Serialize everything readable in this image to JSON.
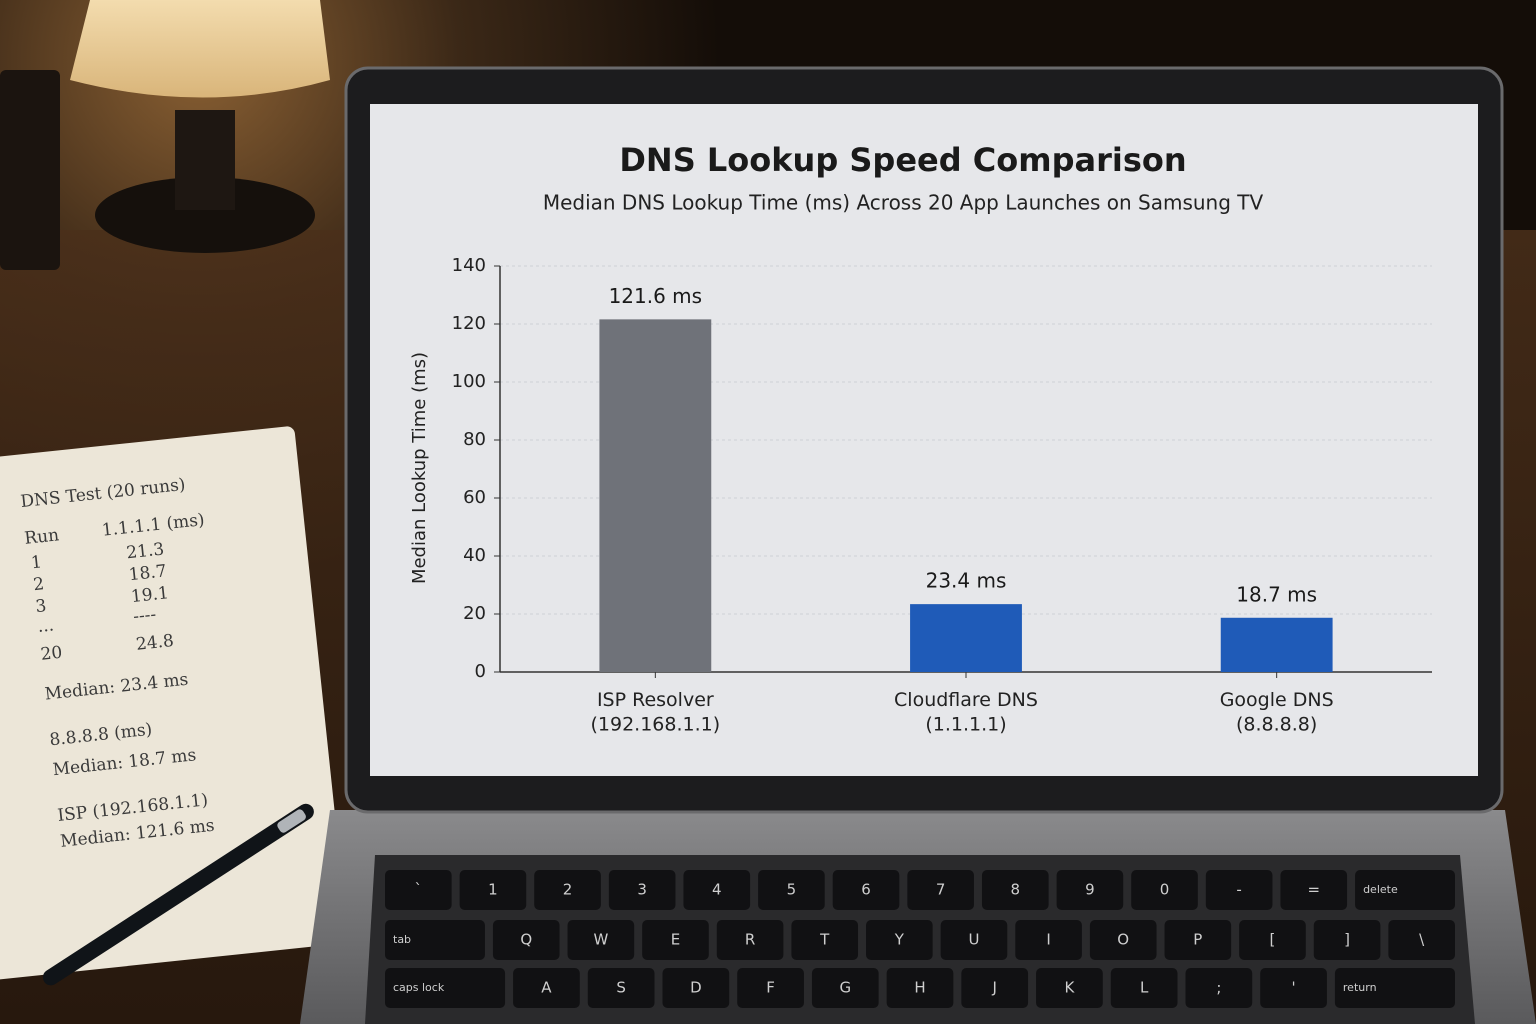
{
  "chart_data": {
    "type": "bar",
    "title": "DNS Lookup Speed Comparison",
    "subtitle": "Median DNS Lookup Time (ms) Across 20 App Launches on Samsung TV",
    "y_label": "Median Lookup Time (ms)",
    "categories": [
      "ISP Resolver\n(192.168.1.1)",
      "Cloudflare DNS\n(1.1.1.1)",
      "Google DNS\n(8.8.8.8)"
    ],
    "values": [
      121.6,
      23.4,
      18.7
    ],
    "value_labels": [
      "121.6 ms",
      "23.4 ms",
      "18.7 ms"
    ],
    "colors": [
      "#6f7279",
      "#1f5bb8",
      "#1f5bb8"
    ],
    "ylim": [
      0,
      140
    ],
    "yticks": [
      0,
      20,
      40,
      60,
      80,
      100,
      120,
      140
    ],
    "grid": true
  },
  "notebook": {
    "title": "DNS Test (20 runs)",
    "headers": [
      "Run",
      "1.1.1.1 (ms)"
    ],
    "rows": [
      [
        "1",
        "21.3"
      ],
      [
        "2",
        "18.7"
      ],
      [
        "3",
        "19.1"
      ],
      [
        "...",
        "----"
      ],
      [
        "20",
        "24.8"
      ]
    ],
    "notes": [
      "Median: 23.4 ms",
      "8.8.8.8 (ms)",
      "Median: 18.7 ms",
      "ISP (192.168.1.1)",
      "Median: 121.6 ms"
    ]
  },
  "keyboard": [
    [
      "`",
      "1",
      "2",
      "3",
      "4",
      "5",
      "6",
      "7",
      "8",
      "9",
      "0",
      "-",
      "=",
      "delete"
    ],
    [
      "tab",
      "Q",
      "W",
      "E",
      "R",
      "T",
      "Y",
      "U",
      "I",
      "O",
      "P",
      "[",
      "]",
      "\\"
    ],
    [
      "caps lock",
      "A",
      "S",
      "D",
      "F",
      "G",
      "H",
      "J",
      "K",
      "L",
      ";",
      "'",
      "return"
    ]
  ]
}
